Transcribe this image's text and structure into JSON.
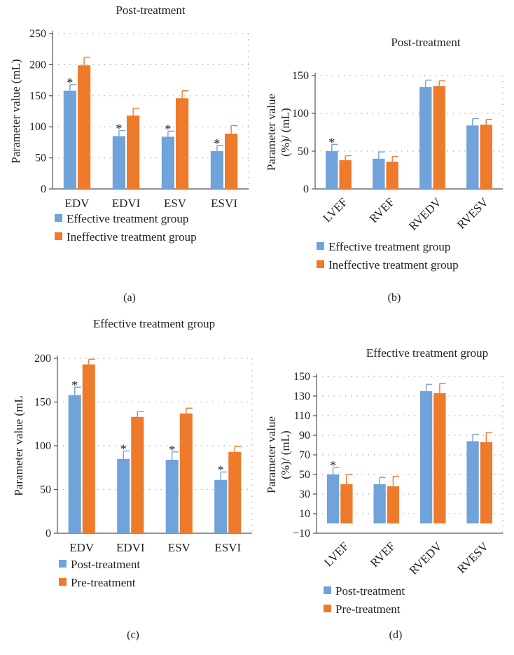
{
  "colors": {
    "blue": "#6fa3d9",
    "orange": "#ee7a2b",
    "axis": "#555555",
    "grid": "#9a9a9a"
  },
  "chart_data": [
    {
      "panel_label": "(a)",
      "type": "bar",
      "title": "Post-treatment",
      "ylabel": "Parameter value (mL)",
      "ylabel_lines": [
        "Parameter value (mL)"
      ],
      "ylim": [
        0,
        250
      ],
      "yticks": [
        0,
        50,
        100,
        150,
        200,
        250
      ],
      "ytick_labels": [
        "0",
        "50",
        "100",
        "150",
        "200",
        "250"
      ],
      "grid": true,
      "categories": [
        "EDV",
        "EDVI",
        "ESV",
        "ESVI"
      ],
      "series": [
        {
          "name": "Effective treatment group",
          "color": "#6fa3d9",
          "values": [
            158,
            85,
            84,
            61
          ],
          "errors": [
            10,
            9,
            9,
            9
          ]
        },
        {
          "name": "Ineffective treatment group",
          "color": "#ee7a2b",
          "values": [
            199,
            118,
            146,
            89
          ],
          "errors": [
            13,
            12,
            12,
            13
          ]
        }
      ],
      "significance": [
        "*",
        "*",
        "*",
        "*"
      ],
      "legend_position": "bottom"
    },
    {
      "panel_label": "(b)",
      "type": "bar",
      "title": "Post-treatment",
      "ylabel": "Parameter value (%)/ (mL)",
      "ylabel_lines": [
        "Parameter value",
        "(%)/ (mL)"
      ],
      "ylim": [
        0,
        150
      ],
      "yticks": [
        0,
        50,
        100,
        150
      ],
      "ytick_labels": [
        "0",
        "50",
        "100",
        "150"
      ],
      "grid": true,
      "categories": [
        "LVEF",
        "RVEF",
        "RVEDV",
        "RVESV"
      ],
      "series": [
        {
          "name": "Effective treatment group",
          "color": "#6fa3d9",
          "values": [
            50,
            40,
            135,
            84
          ],
          "errors": [
            9,
            9,
            9,
            9
          ]
        },
        {
          "name": "Ineffective treatment group",
          "color": "#ee7a2b",
          "values": [
            38,
            36,
            136,
            85
          ],
          "errors": [
            6,
            7,
            7,
            7
          ]
        }
      ],
      "significance": [
        "*",
        "",
        "",
        ""
      ],
      "legend_position": "bottom"
    },
    {
      "panel_label": "(c)",
      "type": "bar",
      "title": "Effective treatment group",
      "ylabel": "Parameter value (mL",
      "ylabel_lines": [
        "Parameter value (mL"
      ],
      "ylim": [
        0,
        200
      ],
      "yticks": [
        0,
        50,
        100,
        150,
        200
      ],
      "ytick_labels": [
        "0",
        "50",
        "100",
        "150",
        "200"
      ],
      "grid": true,
      "categories": [
        "EDV",
        "EDVI",
        "ESV",
        "ESVI"
      ],
      "series": [
        {
          "name": "Post-treatment",
          "color": "#6fa3d9",
          "values": [
            158,
            85,
            84,
            61
          ],
          "errors": [
            9,
            9,
            9,
            9
          ]
        },
        {
          "name": "Pre-treatment",
          "color": "#ee7a2b",
          "values": [
            193,
            133,
            137,
            93
          ],
          "errors": [
            6,
            6,
            6,
            6
          ]
        }
      ],
      "significance": [
        "*",
        "*",
        "*",
        "*"
      ],
      "legend_position": "bottom"
    },
    {
      "panel_label": "(d)",
      "type": "bar",
      "title": "Effective treatment group",
      "ylabel": "Parameter value (%)/ (mL)",
      "ylabel_lines": [
        "Parameter value",
        "(%)/ (mL)"
      ],
      "ylim": [
        -10,
        150
      ],
      "yticks": [
        -10,
        10,
        30,
        50,
        70,
        90,
        110,
        130,
        150
      ],
      "ytick_labels": [
        "−10",
        "10",
        "30",
        "50",
        "70",
        "90",
        "110",
        "130",
        "150"
      ],
      "grid": true,
      "categories": [
        "LVEF",
        "RVEF",
        "RVEDV",
        "RVESV"
      ],
      "series": [
        {
          "name": "Post-treatment",
          "color": "#6fa3d9",
          "values": [
            50,
            40,
            135,
            84
          ],
          "errors": [
            7,
            7,
            7,
            7
          ]
        },
        {
          "name": "Pre-treatment",
          "color": "#ee7a2b",
          "values": [
            40,
            38,
            133,
            83
          ],
          "errors": [
            10,
            10,
            10,
            10
          ]
        }
      ],
      "significance": [
        "*",
        "",
        "",
        ""
      ],
      "legend_position": "bottom"
    }
  ]
}
